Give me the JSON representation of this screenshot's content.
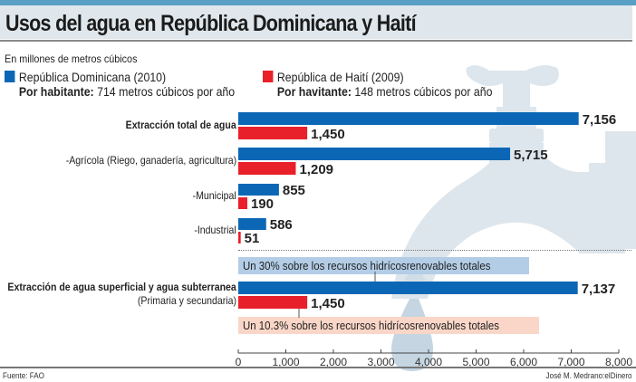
{
  "header": {
    "title": "Usos del agua en República Dominicana y Haití",
    "subtitle": "En millones de metros cúbicos"
  },
  "legend": [
    {
      "name": "República Dominicana (2010)",
      "per_capita_label": "Por habitante:",
      "per_capita_value": "714 metros cúbicos por año",
      "color": "#0b67b5"
    },
    {
      "name": "República de Haití (2009)",
      "per_capita_label": "Por havitante:",
      "per_capita_value": "148 metros cúbicos por año",
      "color": "#e8202a"
    }
  ],
  "notes": {
    "dominicana": "Un 30% sobre los recursos hidrícosrenovables totales",
    "haiti": "Un 10.3% sobre los recursos hidrícosrenovables totales"
  },
  "footer": {
    "source": "Fuente: FAO",
    "credit": "José M. Medrano:elDinero"
  },
  "chart_data": {
    "type": "bar",
    "orientation": "horizontal",
    "title": "Usos del agua en República Dominicana y Haití",
    "subtitle": "En millones de metros cúbicos",
    "categories": [
      {
        "label": "Extracción total de agua",
        "sublabel": "",
        "bold": true
      },
      {
        "label": "-Agrícola (Riego, ganadería, agricultura)",
        "sublabel": "",
        "bold": false
      },
      {
        "label": "-Municipal",
        "sublabel": "",
        "bold": false
      },
      {
        "label": "-Industrial",
        "sublabel": "",
        "bold": false
      },
      {
        "label": "Extracción de agua superficial y agua subterranea",
        "sublabel": "(Primaria y secundaria)",
        "bold": true
      }
    ],
    "series": [
      {
        "name": "República Dominicana (2010)",
        "color": "#0b67b5",
        "values": [
          7156,
          5715,
          855,
          586,
          7137
        ],
        "labels": [
          "7,156",
          "5,715",
          "855",
          "586",
          "7,137"
        ]
      },
      {
        "name": "República de Haití (2009)",
        "color": "#e8202a",
        "values": [
          1450,
          1209,
          190,
          51,
          1450
        ],
        "labels": [
          "1,450",
          "1,209",
          "190",
          "51",
          "1,450"
        ]
      }
    ],
    "xlim": [
      0,
      8000
    ],
    "xticks": [
      0,
      1000,
      2000,
      3000,
      4000,
      5000,
      6000,
      7000,
      8000
    ],
    "xtick_labels": [
      "0",
      "1,000",
      "2,000",
      "3,000",
      "4,000",
      "5,000",
      "6,000",
      "7,000",
      "8,000"
    ],
    "xlabel": "",
    "ylabel": "",
    "grid": false,
    "legend_position": "top"
  }
}
